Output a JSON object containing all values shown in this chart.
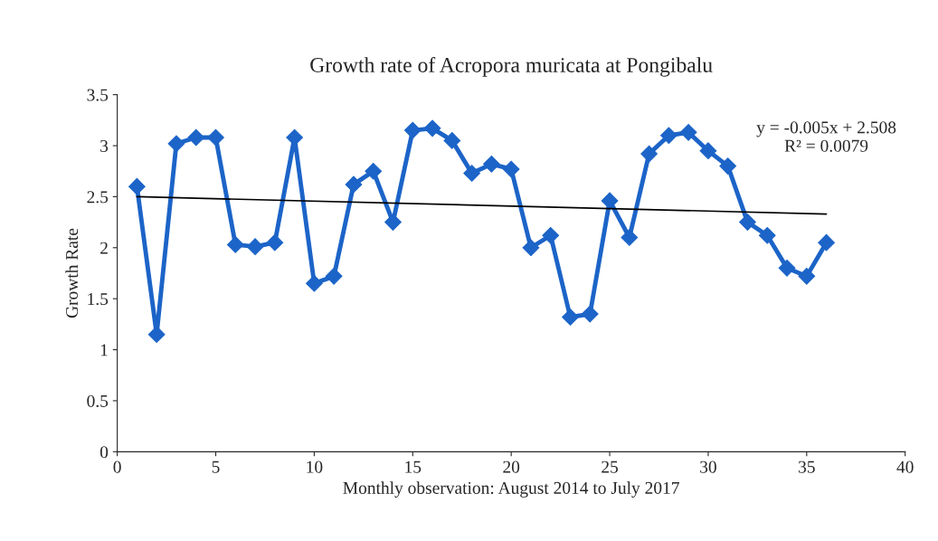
{
  "chart_data": {
    "type": "line",
    "title": "Growth rate of Acropora muricata at Pongibalu",
    "xlabel": "Monthly observation: August 2014 to July 2017",
    "ylabel": "Growth Rate",
    "x": [
      1,
      2,
      3,
      4,
      5,
      6,
      7,
      8,
      9,
      10,
      11,
      12,
      13,
      14,
      15,
      16,
      17,
      18,
      19,
      20,
      21,
      22,
      23,
      24,
      25,
      26,
      27,
      28,
      29,
      30,
      31,
      32,
      33,
      34,
      35,
      36
    ],
    "series": [
      {
        "color": "#1c64c8",
        "marker": "diamond",
        "values": [
          2.6,
          1.15,
          3.02,
          3.08,
          3.08,
          2.03,
          2.01,
          2.05,
          3.08,
          1.65,
          1.72,
          2.62,
          2.75,
          2.25,
          3.15,
          3.17,
          3.05,
          2.73,
          2.82,
          2.77,
          2.0,
          2.12,
          1.32,
          1.35,
          2.46,
          2.1,
          2.92,
          3.1,
          3.13,
          2.95,
          2.8,
          2.25,
          2.12,
          1.8,
          1.72,
          2.05
        ]
      },
      {
        "type": "line",
        "color": "#000000",
        "marker": "none",
        "x": [
          1,
          36
        ],
        "values": [
          2.5,
          2.33
        ]
      }
    ],
    "annotations": [
      "y = -0.005x + 2.508\nR² = 0.0079"
    ],
    "xlim": [
      0,
      40
    ],
    "xticks": [
      0,
      5,
      10,
      15,
      20,
      25,
      30,
      35,
      40
    ],
    "ylim": [
      0,
      3.5
    ],
    "yticks": [
      0,
      0.5,
      1,
      1.5,
      2,
      2.5,
      3,
      3.5
    ],
    "grid": false,
    "legend": false
  }
}
